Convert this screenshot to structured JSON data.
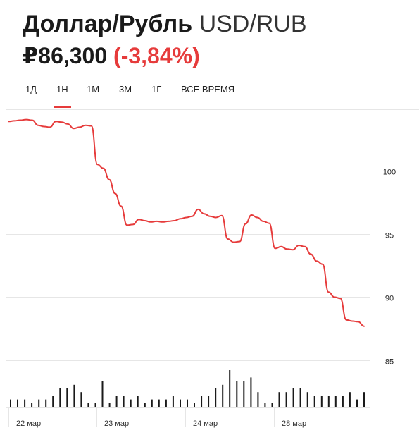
{
  "header": {
    "pair_ru": "Доллар/Рубль",
    "pair_code": "USD/RUB",
    "price": "₽86,300",
    "change": "(-3,84%)"
  },
  "tabs": [
    {
      "label": "1Д",
      "active": false
    },
    {
      "label": "1Н",
      "active": true
    },
    {
      "label": "1М",
      "active": false
    },
    {
      "label": "3М",
      "active": false
    },
    {
      "label": "1Г",
      "active": false
    },
    {
      "label": "ВСЕ ВРЕМЯ",
      "active": false
    }
  ],
  "colors": {
    "line": "#e63b3b",
    "accent": "#e63b3b",
    "grid": "#e6e6e6",
    "volume": "#1a1a1a"
  },
  "chart_data": {
    "type": "line",
    "y_ticks": [
      85,
      90,
      95,
      100
    ],
    "ylim": [
      84.5,
      104.7
    ],
    "x_labels": [
      "22 мар",
      "23 мар",
      "24 мар",
      "28 мар"
    ],
    "x_label_index": [
      0,
      1,
      2,
      3
    ],
    "grid": true,
    "series": [
      {
        "values": [
          103.9,
          103.95,
          104.0,
          104.05,
          104.0,
          103.6,
          103.5,
          103.45,
          103.9,
          103.85,
          103.7,
          103.35,
          103.45,
          103.6,
          103.55,
          100.5,
          100.2,
          99.3,
          98.2,
          97.2,
          95.7,
          95.75,
          96.15,
          96.05,
          95.95,
          96.0,
          95.95,
          96.0,
          96.05,
          96.2,
          96.3,
          96.4,
          96.95,
          96.6,
          96.4,
          96.3,
          96.45,
          94.6,
          94.35,
          94.4,
          95.8,
          96.5,
          96.3,
          96.0,
          95.85,
          93.85,
          94.0,
          93.8,
          93.75,
          94.1,
          94.0,
          93.4,
          92.85,
          92.6,
          90.4,
          90.0,
          89.9,
          88.2,
          88.1,
          88.05,
          87.7
        ],
        "dates": [
          "22 мар",
          "23 мар",
          "24 мар",
          "28 мар"
        ]
      }
    ],
    "volume": [
      2,
      2,
      2,
      1,
      2,
      2,
      3,
      5,
      5,
      6,
      4,
      1,
      1,
      7,
      1,
      3,
      3,
      2,
      3,
      1,
      2,
      2,
      2,
      3,
      2,
      2,
      1,
      3,
      3,
      5,
      6,
      10,
      7,
      7,
      8,
      4,
      1,
      1,
      4,
      4,
      5,
      5,
      4,
      3,
      3,
      3,
      3,
      3,
      4,
      2,
      4
    ]
  }
}
